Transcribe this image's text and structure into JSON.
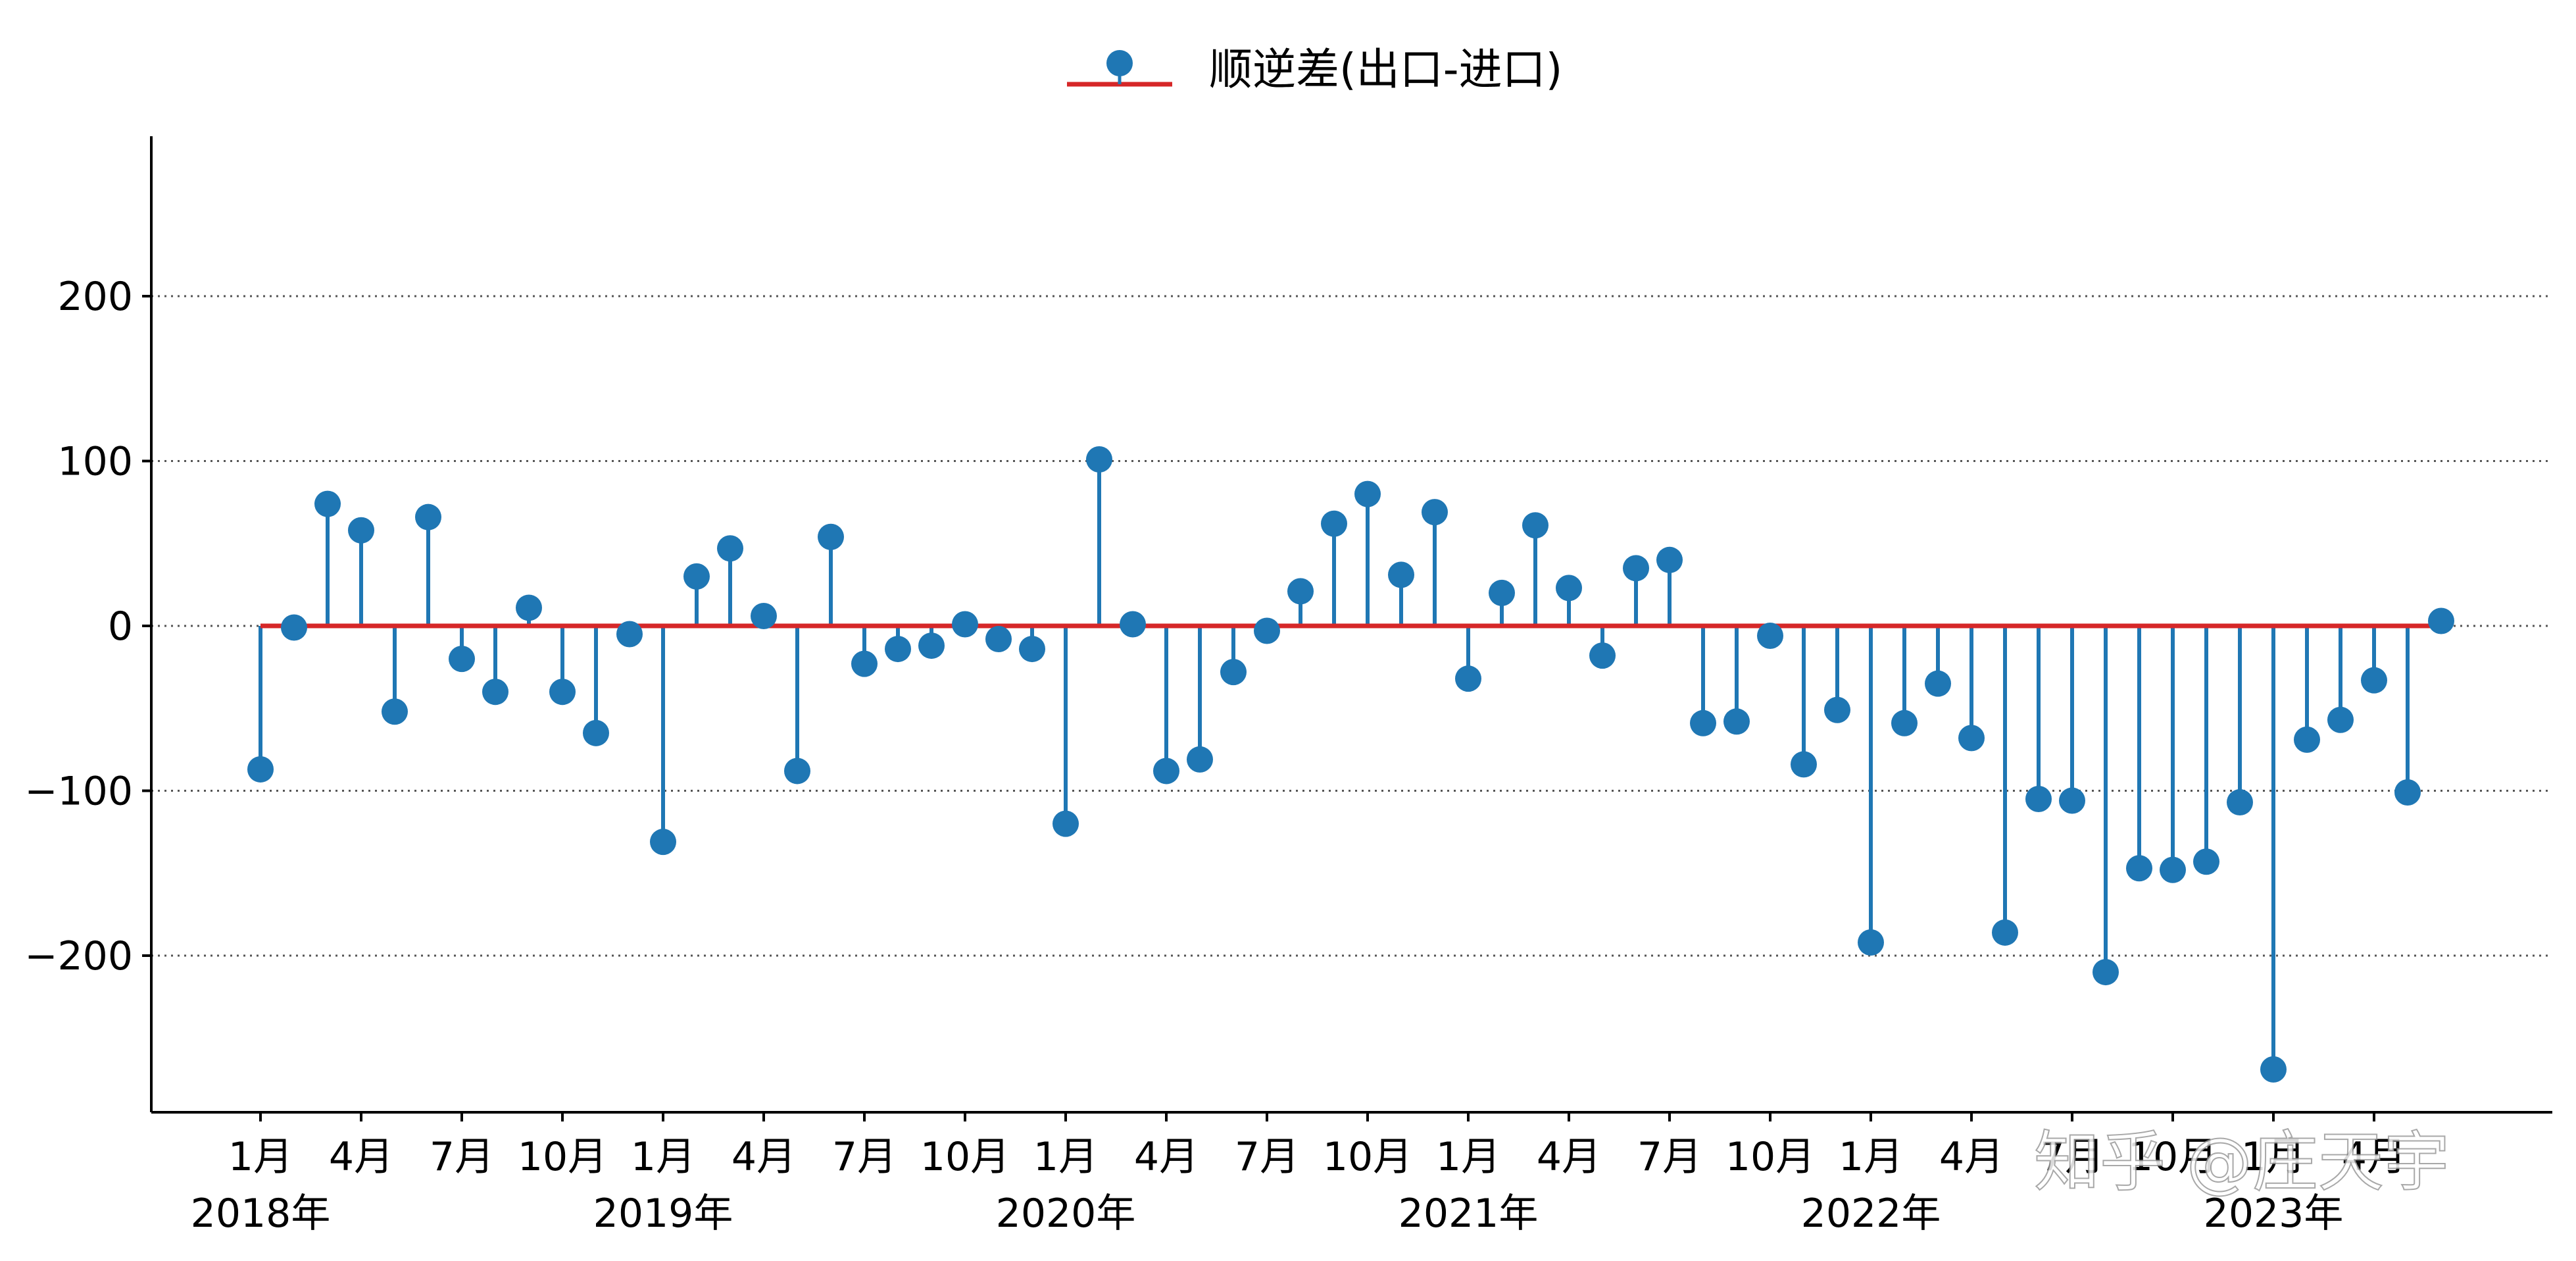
{
  "chart_data": {
    "type": "stem",
    "legend": {
      "label": "顺逆差(出口-进口)",
      "placement": "top-center"
    },
    "colors": {
      "stem": "#1f77b4",
      "marker": "#1f77b4",
      "baseline": "#d62728",
      "grid": "#555555",
      "axis": "#000000"
    },
    "ylim": [
      -295,
      297
    ],
    "yticks": [
      {
        "value": 200,
        "label": "200"
      },
      {
        "value": 100,
        "label": "100"
      },
      {
        "value": 0,
        "label": "0"
      },
      {
        "value": -100,
        "label": "−100"
      },
      {
        "value": -200,
        "label": "−200"
      }
    ],
    "grid": {
      "y": true,
      "style": "dotted"
    },
    "x_month_ticks": [
      {
        "index": 0,
        "label": "1月"
      },
      {
        "index": 3,
        "label": "4月"
      },
      {
        "index": 6,
        "label": "7月"
      },
      {
        "index": 9,
        "label": "10月"
      },
      {
        "index": 12,
        "label": "1月"
      },
      {
        "index": 15,
        "label": "4月"
      },
      {
        "index": 18,
        "label": "7月"
      },
      {
        "index": 21,
        "label": "10月"
      },
      {
        "index": 24,
        "label": "1月"
      },
      {
        "index": 27,
        "label": "4月"
      },
      {
        "index": 30,
        "label": "7月"
      },
      {
        "index": 33,
        "label": "10月"
      },
      {
        "index": 36,
        "label": "1月"
      },
      {
        "index": 39,
        "label": "4月"
      },
      {
        "index": 42,
        "label": "7月"
      },
      {
        "index": 45,
        "label": "10月"
      },
      {
        "index": 48,
        "label": "1月"
      },
      {
        "index": 51,
        "label": "4月"
      },
      {
        "index": 54,
        "label": "7月"
      },
      {
        "index": 57,
        "label": "10月"
      },
      {
        "index": 60,
        "label": "1月"
      },
      {
        "index": 63,
        "label": "4月"
      }
    ],
    "x_year_ticks": [
      {
        "index": 0,
        "label": "2018年"
      },
      {
        "index": 12,
        "label": "2019年"
      },
      {
        "index": 24,
        "label": "2020年"
      },
      {
        "index": 36,
        "label": "2021年"
      },
      {
        "index": 48,
        "label": "2022年"
      },
      {
        "index": 60,
        "label": "2023年"
      }
    ],
    "x": [
      "2018-01",
      "2018-02",
      "2018-03",
      "2018-04",
      "2018-05",
      "2018-06",
      "2018-07",
      "2018-08",
      "2018-09",
      "2018-10",
      "2018-11",
      "2018-12",
      "2019-01",
      "2019-02",
      "2019-03",
      "2019-04",
      "2019-05",
      "2019-06",
      "2019-07",
      "2019-08",
      "2019-09",
      "2019-10",
      "2019-11",
      "2019-12",
      "2020-01",
      "2020-02",
      "2020-03",
      "2020-04",
      "2020-05",
      "2020-06",
      "2020-07",
      "2020-08",
      "2020-09",
      "2020-10",
      "2020-11",
      "2020-12",
      "2021-01",
      "2021-02",
      "2021-03",
      "2021-04",
      "2021-05",
      "2021-06",
      "2021-07",
      "2021-08",
      "2021-09",
      "2021-10",
      "2021-11",
      "2021-12",
      "2022-01",
      "2022-02",
      "2022-03",
      "2022-04",
      "2022-05",
      "2022-06",
      "2022-07",
      "2022-08",
      "2022-09",
      "2022-10",
      "2022-11",
      "2022-12",
      "2023-01",
      "2023-02",
      "2023-03",
      "2023-04",
      "2023-05",
      "2023-06"
    ],
    "values": [
      -87,
      -1,
      74,
      58,
      -52,
      66,
      -20,
      -40,
      11,
      -40,
      -65,
      -5,
      -131,
      30,
      47,
      6,
      -88,
      54,
      -23,
      -14,
      -12,
      1,
      -8,
      -14,
      -120,
      101,
      1,
      -88,
      -81,
      -28,
      -3,
      21,
      62,
      80,
      31,
      69,
      -32,
      20,
      61,
      23,
      -18,
      35,
      40,
      -59,
      -58,
      -6,
      -84,
      -51,
      -192,
      -59,
      -35,
      -68,
      -186,
      -105,
      -106,
      -210,
      -147,
      -148,
      -143,
      -107,
      -269,
      -69,
      -57,
      -33,
      -101,
      3
    ]
  },
  "watermark": "知乎 @庄天宇"
}
